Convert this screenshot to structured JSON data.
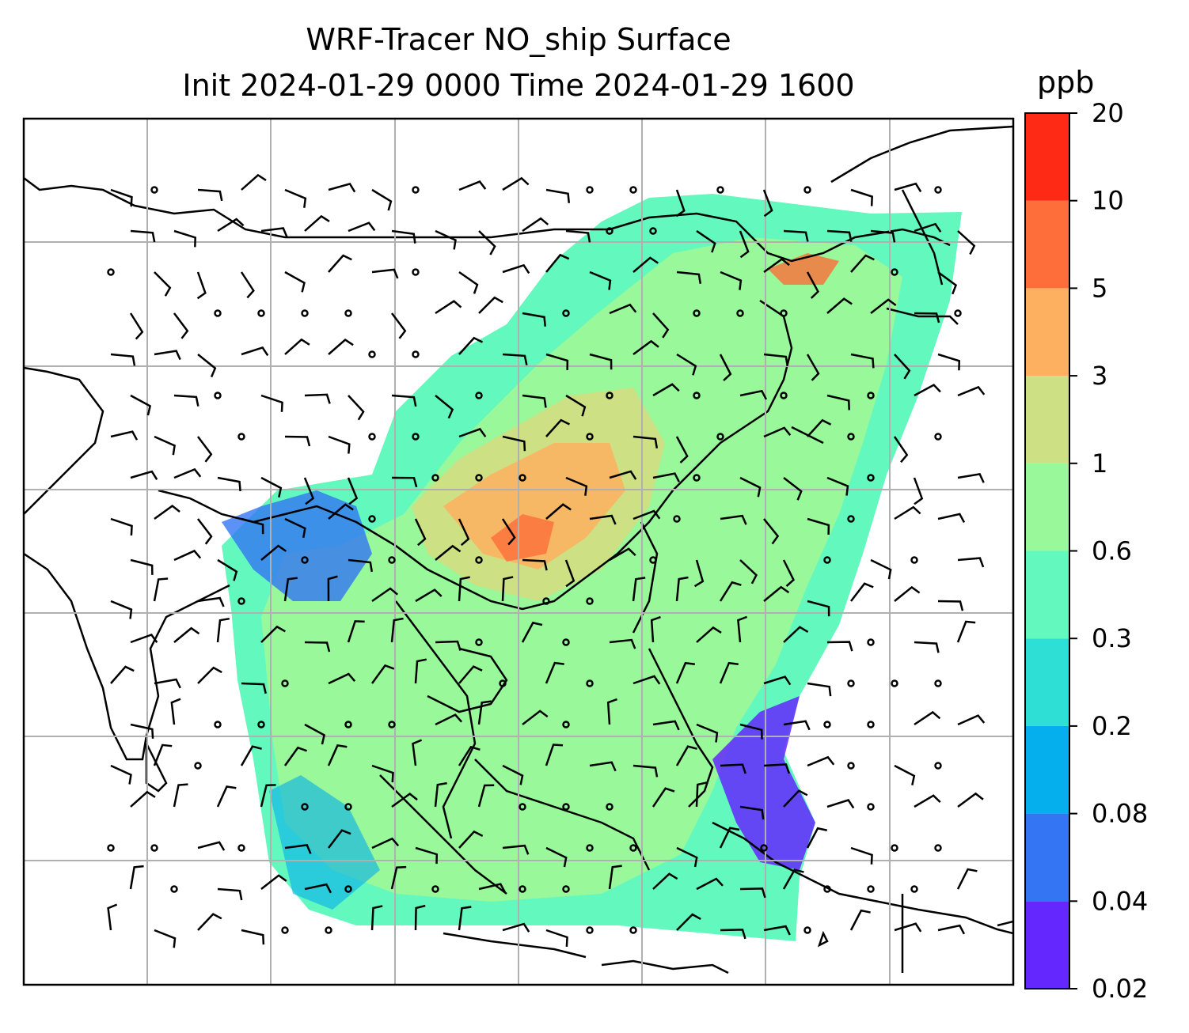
{
  "title": {
    "line1": "WRF-Tracer NO_ship Surface",
    "line2": "Init 2024-01-29 0000 Time 2024-01-29 1600"
  },
  "colorbar": {
    "unit": "ppb",
    "levels": [
      "0.02",
      "0.04",
      "0.08",
      "0.2",
      "0.3",
      "0.6",
      "1",
      "3",
      "5",
      "10",
      "20"
    ],
    "colors": [
      "#6428ff",
      "#3375f3",
      "#05aeed",
      "#2ddfd4",
      "#62f8be",
      "#98f89a",
      "#cde084",
      "#fdb05f",
      "#fe6e3a",
      "#ff2a16"
    ]
  },
  "map": {
    "gridlines": true,
    "background": "#ffffff",
    "coastline_color": "#000000"
  }
}
